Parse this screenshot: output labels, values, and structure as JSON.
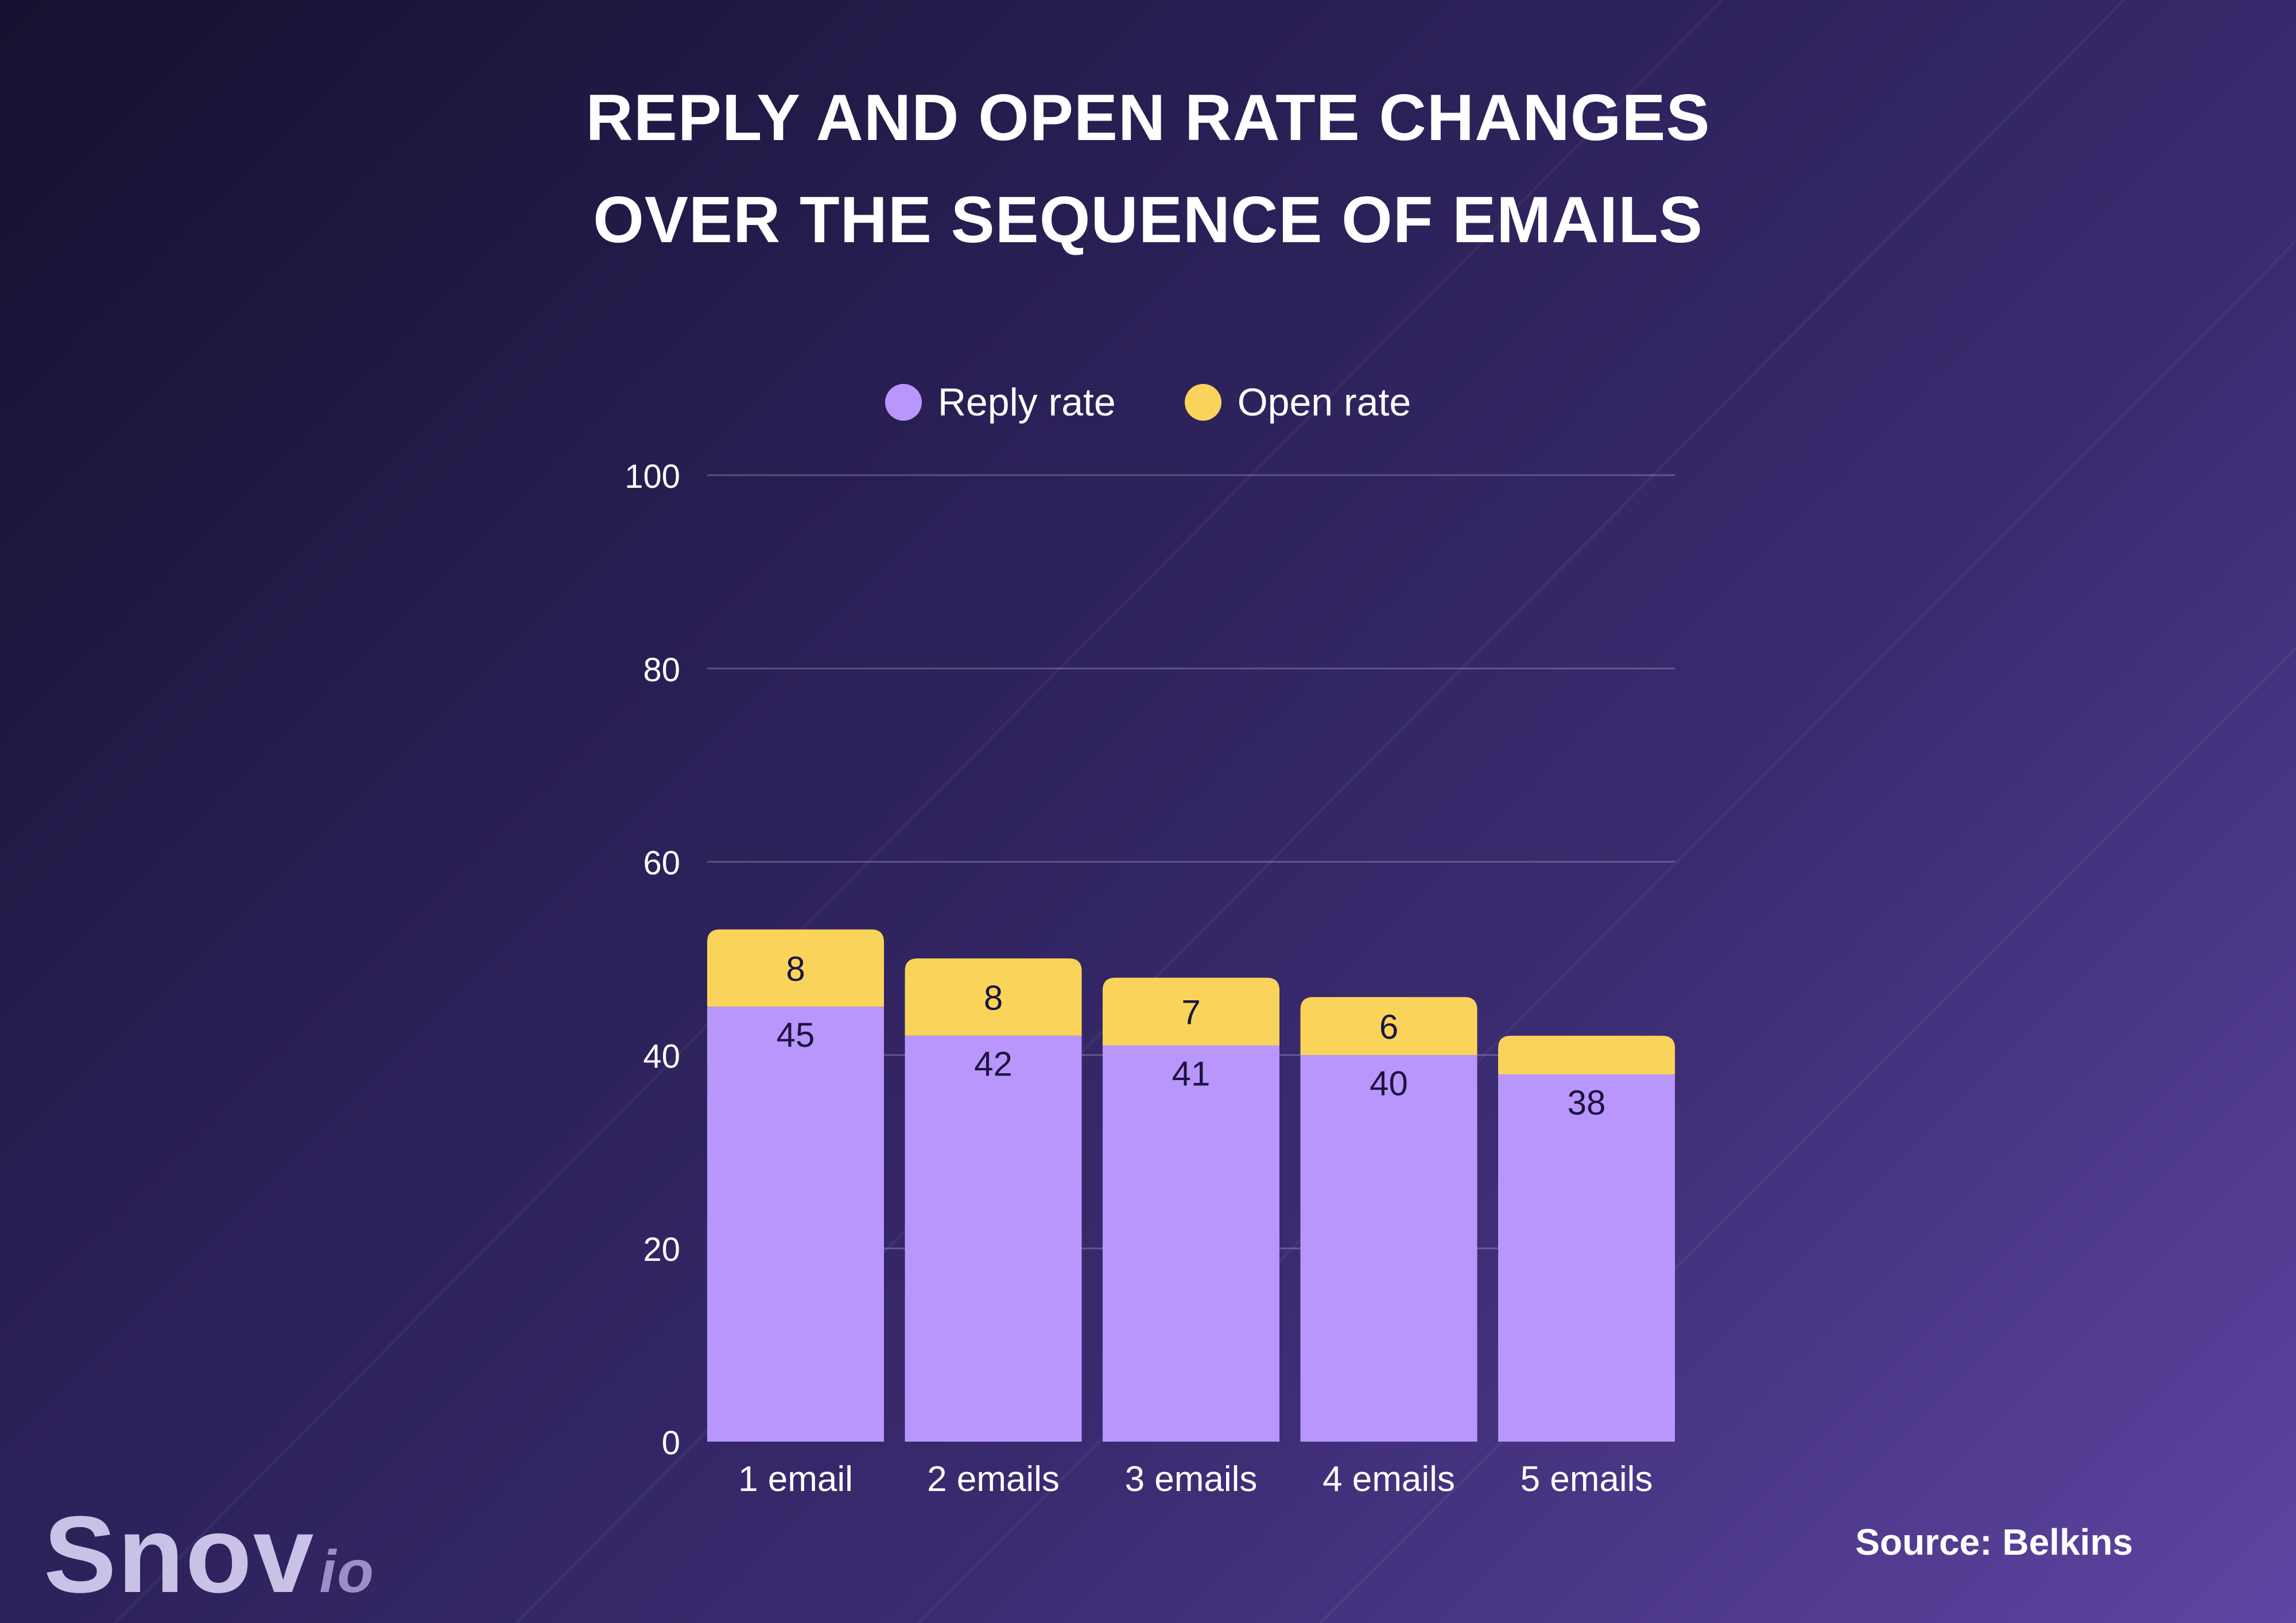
{
  "title": {
    "line1": "REPLY AND OPEN RATE CHANGES",
    "line2": "OVER THE SEQUENCE OF EMAILS"
  },
  "legend": [
    {
      "label": "Reply rate",
      "color": "#b996fc"
    },
    {
      "label": "Open rate",
      "color": "#fad45a"
    }
  ],
  "chart_data": {
    "type": "bar",
    "stacked": true,
    "title": "REPLY AND OPEN RATE CHANGES OVER THE SEQUENCE OF EMAILS",
    "categories": [
      "1 email",
      "2 emails",
      "3 emails",
      "4 emails",
      "5 emails"
    ],
    "series": [
      {
        "name": "Reply rate",
        "values": [
          45,
          42,
          41,
          40,
          38
        ],
        "color": "#b996fc"
      },
      {
        "name": "Open rate",
        "values": [
          8,
          8,
          7,
          6,
          4
        ],
        "color": "#fad45a"
      }
    ],
    "data_labels": {
      "Reply rate": [
        "45",
        "42",
        "41",
        "40",
        "38"
      ],
      "Open rate": [
        "8",
        "8",
        "7",
        "6",
        ""
      ]
    },
    "yticks": [
      0,
      20,
      40,
      60,
      80,
      100
    ],
    "ylim": [
      0,
      100
    ],
    "xlabel": "",
    "ylabel": "",
    "grid": true,
    "legend_position": "top-center"
  },
  "branding": {
    "logo_main": "Snov",
    "logo_suffix": "io"
  },
  "source": "Source: Belkins"
}
